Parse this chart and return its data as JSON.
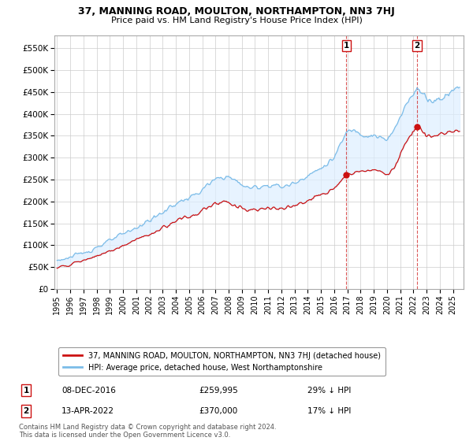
{
  "title": "37, MANNING ROAD, MOULTON, NORTHAMPTON, NN3 7HJ",
  "subtitle": "Price paid vs. HM Land Registry's House Price Index (HPI)",
  "hpi_color": "#7bbce8",
  "price_color": "#cc1111",
  "dashed_color": "#cc1111",
  "fill_color": "#ddeeff",
  "background_color": "#ffffff",
  "grid_color": "#cccccc",
  "legend1": "37, MANNING ROAD, MOULTON, NORTHAMPTON, NN3 7HJ (detached house)",
  "legend2": "HPI: Average price, detached house, West Northamptonshire",
  "point1_date": "08-DEC-2016",
  "point1_price": "£259,995",
  "point1_hpi": "29% ↓ HPI",
  "point1_x": 2016.93,
  "point1_y": 259995,
  "point2_date": "13-APR-2022",
  "point2_price": "£370,000",
  "point2_hpi": "17% ↓ HPI",
  "point2_x": 2022.28,
  "point2_y": 370000,
  "footer": "Contains HM Land Registry data © Crown copyright and database right 2024.\nThis data is licensed under the Open Government Licence v3.0.",
  "ylim": [
    0,
    580000
  ],
  "xlim_start": 1994.8,
  "xlim_end": 2025.8,
  "yticks": [
    0,
    50000,
    100000,
    150000,
    200000,
    250000,
    300000,
    350000,
    400000,
    450000,
    500000,
    550000
  ],
  "ytick_labels": [
    "£0",
    "£50K",
    "£100K",
    "£150K",
    "£200K",
    "£250K",
    "£300K",
    "£350K",
    "£400K",
    "£450K",
    "£500K",
    "£550K"
  ],
  "xticks": [
    1995,
    1996,
    1997,
    1998,
    1999,
    2000,
    2001,
    2002,
    2003,
    2004,
    2005,
    2006,
    2007,
    2008,
    2009,
    2010,
    2011,
    2012,
    2013,
    2014,
    2015,
    2016,
    2017,
    2018,
    2019,
    2020,
    2021,
    2022,
    2023,
    2024,
    2025
  ]
}
